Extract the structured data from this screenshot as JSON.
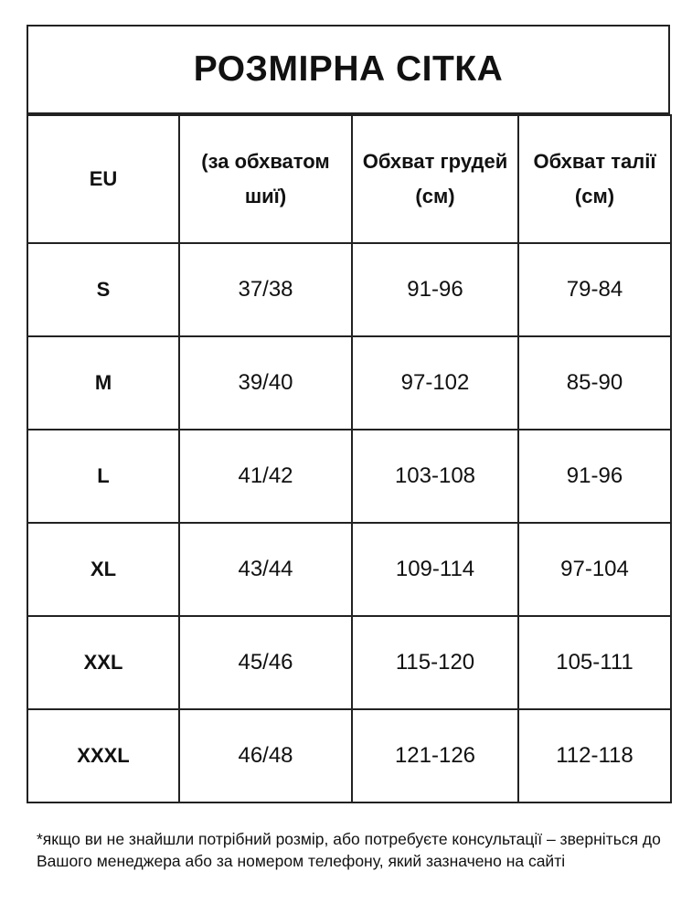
{
  "title": "РОЗМІРНА СІТКА",
  "columns": [
    "EU",
    "(за обхватом шиї)",
    "Обхват грудей (см)",
    "Обхват талії  (см)"
  ],
  "rows": [
    [
      "S",
      "37/38",
      "91-96",
      "79-84"
    ],
    [
      "M",
      "39/40",
      "97-102",
      "85-90"
    ],
    [
      "L",
      "41/42",
      "103-108",
      "91-96"
    ],
    [
      "XL",
      "43/44",
      "109-114",
      "97-104"
    ],
    [
      "XXL",
      "45/46",
      "115-120",
      "105-111"
    ],
    [
      "XXXL",
      "46/48",
      "121-126",
      "112-118"
    ]
  ],
  "footnote": "*якщо ви не знайшли потрібний розмір, або потребуєте консультації – зверніться до Вашого менеджера або за номером телефону, який зазначено на сайті"
}
